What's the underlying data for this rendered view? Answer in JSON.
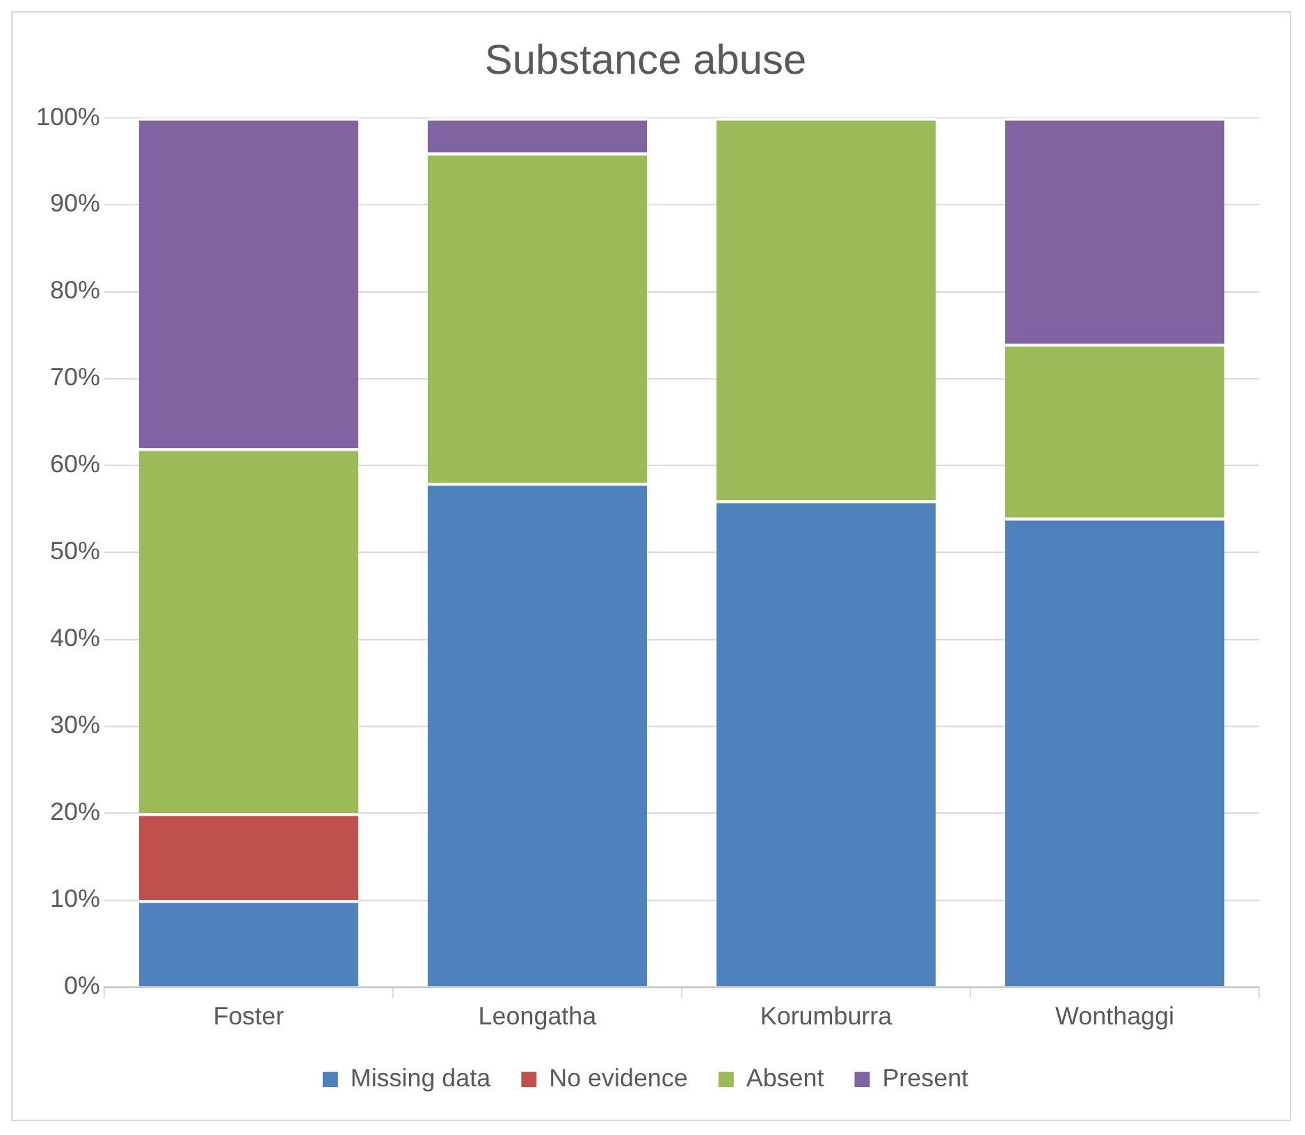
{
  "chart_data": {
    "type": "bar",
    "title": "Substance abuse",
    "stacked": true,
    "categories": [
      "Foster",
      "Leongatha",
      "Korumburra",
      "Wonthaggi"
    ],
    "series": [
      {
        "name": "Missing data",
        "color": "#4f81bd",
        "values": [
          10,
          58,
          56,
          54
        ]
      },
      {
        "name": "No evidence",
        "color": "#c0504d",
        "values": [
          10,
          0,
          0,
          0
        ]
      },
      {
        "name": "Absent",
        "color": "#9bbb59",
        "values": [
          42,
          38,
          44,
          20
        ]
      },
      {
        "name": "Present",
        "color": "#8064a2",
        "values": [
          38,
          4,
          0,
          26
        ]
      }
    ],
    "ylim": [
      0,
      100
    ],
    "yticks": [
      {
        "value": 0,
        "label": "0%"
      },
      {
        "value": 10,
        "label": "10%"
      },
      {
        "value": 20,
        "label": "20%"
      },
      {
        "value": 30,
        "label": "30%"
      },
      {
        "value": 40,
        "label": "40%"
      },
      {
        "value": 50,
        "label": "50%"
      },
      {
        "value": 60,
        "label": "60%"
      },
      {
        "value": 70,
        "label": "70%"
      },
      {
        "value": 80,
        "label": "80%"
      },
      {
        "value": 90,
        "label": "90%"
      },
      {
        "value": 100,
        "label": "100%"
      }
    ],
    "grid": "y",
    "legend": "bottom"
  }
}
